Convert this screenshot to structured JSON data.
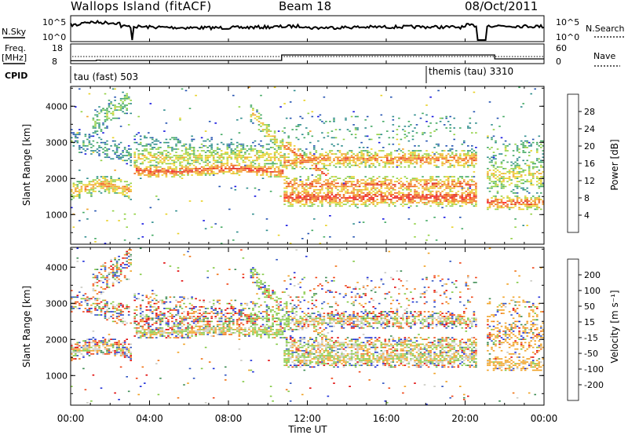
{
  "header": {
    "site": "Wallops Island (fitACF)",
    "beam": "Beam 18",
    "date": "08/Oct/2011"
  },
  "chart_data": [
    {
      "type": "line",
      "panel": "noise",
      "left_label": "N.Sky",
      "right_label": "N.Search",
      "left_ticks": [
        "10^5",
        "10^0"
      ],
      "right_ticks": [
        "10^5",
        "10^0"
      ],
      "data_gaps_hours": [
        [
          3.1,
          3.2
        ],
        [
          20.6,
          21.1
        ]
      ]
    },
    {
      "type": "line",
      "panel": "frequency",
      "left_label_line1": "Freq.",
      "left_label_line2": "[MHz]",
      "right_label": "Nave",
      "left_ticks": [
        "18",
        "8"
      ],
      "right_ticks": [
        "60",
        "0"
      ],
      "freq_steps": [
        [
          0,
          8.8
        ],
        [
          1.3,
          9.2
        ],
        [
          1.5,
          9.0
        ],
        [
          3.2,
          9.0
        ],
        [
          9.0,
          9.0
        ],
        [
          10.7,
          12.5
        ],
        [
          20.6,
          12.5
        ],
        [
          21.1,
          12.5
        ],
        [
          21.5,
          10.0
        ],
        [
          24.0,
          10.0
        ]
      ]
    },
    {
      "type": "table",
      "panel": "cpid",
      "label": "CPID",
      "segments": [
        {
          "start_hour": 0,
          "text": "tau (fast) 503"
        },
        {
          "start_hour": 18.0,
          "text": "themis (tau) 3310"
        }
      ]
    },
    {
      "type": "heatmap",
      "panel": "power",
      "ylabel": "Slant Range [km]",
      "ylim": [
        180,
        4550
      ],
      "yticks": [
        "1000",
        "2000",
        "3000",
        "4000"
      ],
      "colorbar_label": "Power [dB]",
      "colorbar_ticks": [
        "4",
        "8",
        "12",
        "16",
        "20",
        "24",
        "28"
      ],
      "colorbar_range": [
        0,
        32
      ],
      "colors": [
        "#1010e0",
        "#2050b0",
        "#2a8a8a",
        "#40a860",
        "#90d040",
        "#e8d020",
        "#f0a020",
        "#f06010",
        "#e02010",
        "#ff0000"
      ]
    },
    {
      "type": "heatmap",
      "panel": "velocity",
      "ylabel": "Slant Range [km]",
      "ylim": [
        180,
        4550
      ],
      "yticks": [
        "1000",
        "2000",
        "3000",
        "4000"
      ],
      "colorbar_label": "Velocity [m s⁻¹]",
      "colorbar_ticks": [
        "200",
        "100",
        "50",
        "15",
        "-15",
        "-50",
        "-100",
        "-200"
      ],
      "colors": [
        "#1a2ad8",
        "#2a50c0",
        "#3a8a50",
        "#80c840",
        "#c8c8c0",
        "#f0a020",
        "#f07010",
        "#f04010",
        "#e00000"
      ]
    }
  ],
  "x_axis": {
    "xlabel": "Time UT",
    "xlim_hours": [
      0,
      24
    ],
    "tick_labels": [
      "00:00",
      "04:00",
      "08:00",
      "12:00",
      "16:00",
      "20:00",
      "00:00"
    ]
  }
}
